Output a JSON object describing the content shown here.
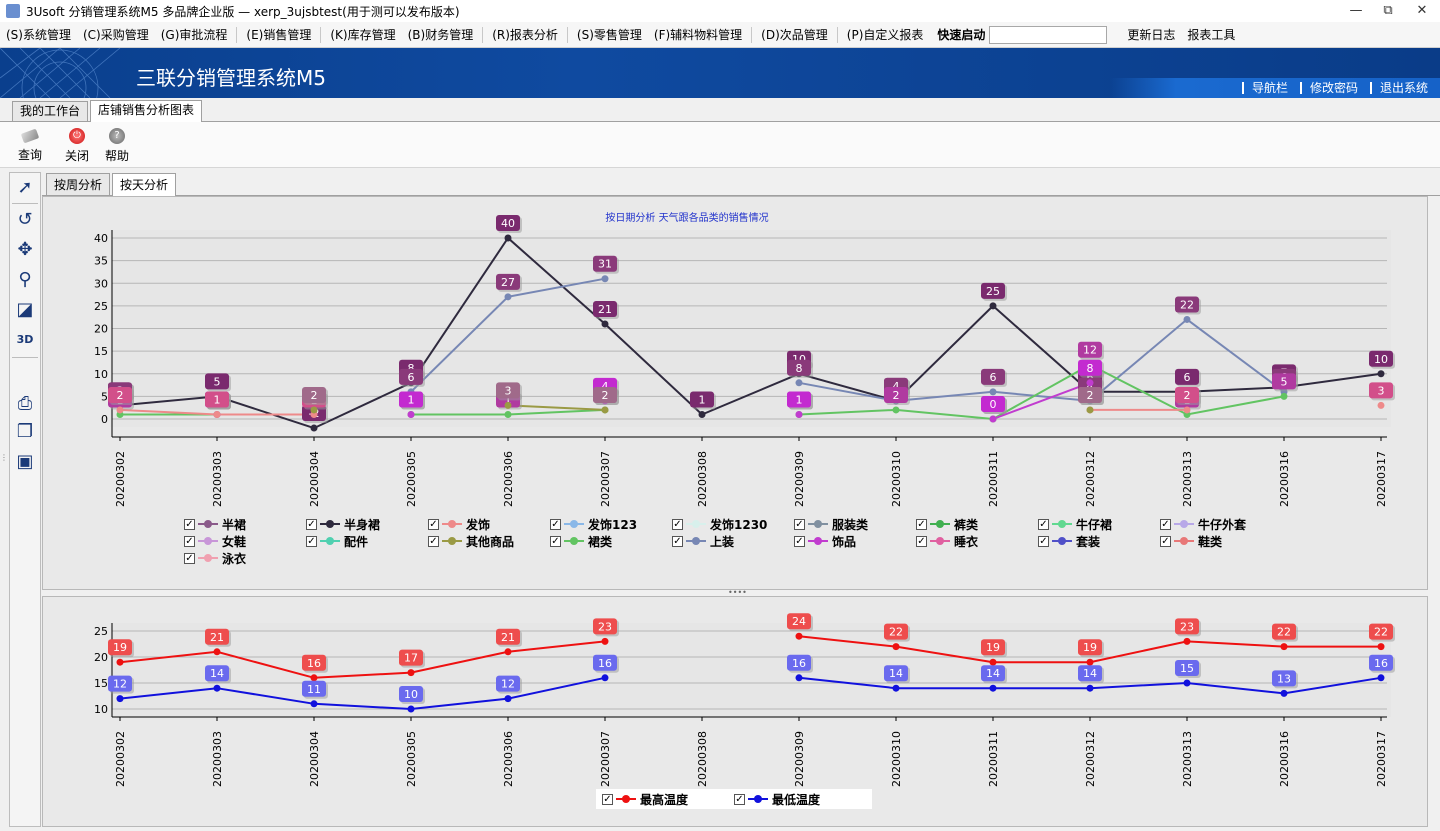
{
  "window": {
    "title": "3Usoft 分销管理系统M5 多品牌企业版 — xerp_3ujsbtest(用于测可以发布版本)",
    "minimize": "—",
    "restore": "⧉",
    "close": "✕"
  },
  "menu": {
    "items": [
      "(S)系统管理",
      "(C)采购管理",
      "(G)审批流程",
      "(E)销售管理",
      "(K)库存管理",
      "(B)财务管理",
      "(R)报表分析",
      "(S)零售管理",
      "(F)辅料物料管理",
      "(D)次品管理",
      "(P)自定义报表"
    ],
    "quick_launch_label": "快速启动",
    "quick_launch_value": "",
    "extra": [
      "更新日志",
      "报表工具"
    ]
  },
  "banner": {
    "brand": "三联分销管理系统M5",
    "links": [
      "导航栏",
      "修改密码",
      "退出系统"
    ]
  },
  "outer_tabs": [
    "我的工作台",
    "店铺销售分析图表"
  ],
  "toolbar": {
    "query": "查询",
    "close": "关闭",
    "help": "帮助"
  },
  "inner_tabs": [
    "按周分析",
    "按天分析"
  ],
  "colors": {
    "accent_banner": "#0f4aa0",
    "high_temp": "#ee1111",
    "low_temp": "#1111dd"
  },
  "chart_data": [
    {
      "type": "line",
      "title": "按日期分析  天气跟各品类的销售情况",
      "categories": [
        "20200302",
        "20200303",
        "20200304",
        "20200305",
        "20200306",
        "20200307",
        "20200308",
        "20200309",
        "20200310",
        "20200311",
        "20200312",
        "20200313",
        "20200316",
        "20200317"
      ],
      "ylim": [
        0,
        40
      ],
      "yticks": [
        0,
        5,
        10,
        15,
        20,
        25,
        30,
        35,
        40
      ],
      "grid": true,
      "series": [
        {
          "name": "半身裙",
          "color": "#2f2a3e",
          "label_color": "#7a2a6e",
          "values": [
            3,
            5,
            -2,
            8,
            40,
            21,
            1,
            10,
            4,
            25,
            6,
            6,
            7,
            10
          ]
        },
        {
          "name": "上装",
          "color": "#7787b4",
          "label_color": "#8a3a7a",
          "values": [
            3,
            null,
            null,
            6,
            27,
            31,
            null,
            8,
            4,
            6,
            4,
            22,
            6,
            null
          ]
        },
        {
          "name": "裙类",
          "color": "#62c462",
          "label_color": "#b03aa0",
          "values": [
            1,
            1,
            null,
            1,
            1,
            2,
            null,
            1,
            2,
            0,
            12,
            1,
            5,
            null
          ]
        },
        {
          "name": "饰品",
          "color": "#c13ccf",
          "label_color": "#c32ad0",
          "values": [
            null,
            1,
            null,
            1,
            null,
            4,
            null,
            1,
            null,
            0,
            8,
            null,
            null,
            null
          ]
        },
        {
          "name": "发饰",
          "color": "#ee8a8a",
          "label_color": "#d24f8a",
          "values": [
            2,
            1,
            1,
            null,
            null,
            null,
            null,
            null,
            null,
            null,
            2,
            2,
            null,
            3
          ]
        },
        {
          "name": "其他商品",
          "color": "#9a9a44",
          "label_color": "#a06a8a",
          "values": [
            null,
            null,
            2,
            null,
            3,
            2,
            null,
            null,
            null,
            null,
            2,
            null,
            null,
            null
          ]
        }
      ],
      "legend": [
        "半裙",
        "半身裙",
        "发饰",
        "发饰123",
        "发饰1230",
        "服装类",
        "裤类",
        "牛仔裙",
        "牛仔外套",
        "女鞋",
        "配件",
        "其他商品",
        "裙类",
        "上装",
        "饰品",
        "睡衣",
        "套装",
        "鞋类",
        "泳衣"
      ],
      "legend_colors": [
        "#8a5a8a",
        "#2f2a3e",
        "#ee8a8a",
        "#8ab8e8",
        "#d8f0ec",
        "#8090a0",
        "#40b050",
        "#60d890",
        "#b8a8e8",
        "#c896d8",
        "#50d0b0",
        "#9a9a44",
        "#62c462",
        "#7787b4",
        "#c13ccf",
        "#e060a0",
        "#5050c8",
        "#e87878",
        "#f0a0b0"
      ]
    },
    {
      "type": "line",
      "categories": [
        "20200302",
        "20200303",
        "20200304",
        "20200305",
        "20200306",
        "20200307",
        "20200308",
        "20200309",
        "20200310",
        "20200311",
        "20200312",
        "20200313",
        "20200316",
        "20200317"
      ],
      "ylim": [
        10,
        25
      ],
      "yticks": [
        10,
        15,
        20,
        25
      ],
      "grid": true,
      "series": [
        {
          "name": "最高温度",
          "color": "#ee1111",
          "label_color": "#ee4d4d",
          "values": [
            19,
            21,
            16,
            17,
            21,
            23,
            null,
            24,
            22,
            19,
            19,
            23,
            22,
            22
          ]
        },
        {
          "name": "最低温度",
          "color": "#1111dd",
          "label_color": "#6a6aee",
          "values": [
            12,
            14,
            11,
            10,
            12,
            16,
            null,
            16,
            14,
            14,
            14,
            15,
            13,
            16
          ]
        }
      ]
    }
  ]
}
